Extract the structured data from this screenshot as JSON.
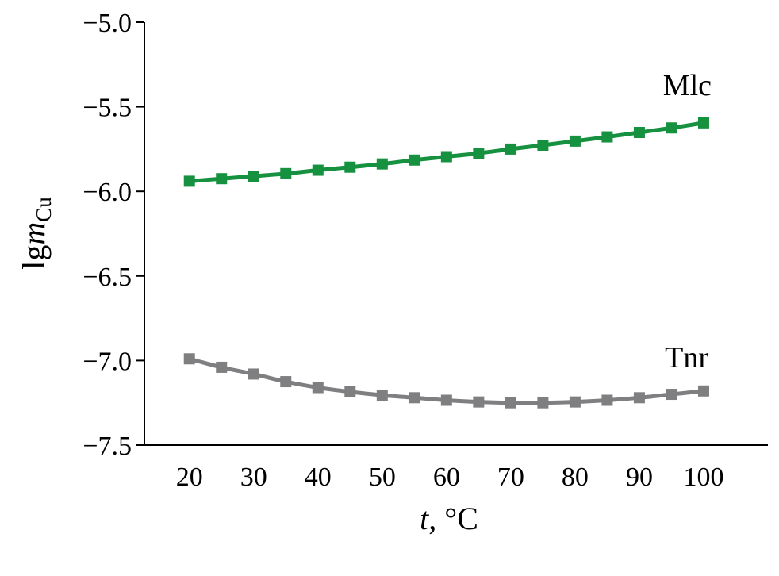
{
  "chart_data": {
    "type": "line",
    "title": "",
    "xlabel_italic": "t",
    "xlabel_rest": ", °C",
    "ylabel_main": "lg",
    "ylabel_italic": "m",
    "ylabel_sub": "Cu",
    "xlim": [
      13,
      110
    ],
    "ylim": [
      -7.5,
      -5.0
    ],
    "xticks": [
      20,
      30,
      40,
      50,
      60,
      70,
      80,
      90,
      100
    ],
    "xtick_labels": [
      "20",
      "30",
      "40",
      "50",
      "60",
      "70",
      "80",
      "90",
      "100"
    ],
    "yticks": [
      -5.0,
      -5.5,
      -6.0,
      -6.5,
      -7.0,
      -7.5
    ],
    "ytick_labels": [
      "−5.0",
      "−5.5",
      "−6.0",
      "−6.5",
      "−7.0",
      "−7.5"
    ],
    "x": [
      20,
      25,
      30,
      35,
      40,
      45,
      50,
      55,
      60,
      65,
      70,
      75,
      80,
      85,
      90,
      95,
      100
    ],
    "grid": false,
    "series": [
      {
        "name": "Mlc",
        "color": "#16913f",
        "values": [
          -5.94,
          -5.925,
          -5.91,
          -5.895,
          -5.875,
          -5.857,
          -5.838,
          -5.815,
          -5.795,
          -5.775,
          -5.75,
          -5.727,
          -5.703,
          -5.678,
          -5.652,
          -5.625,
          -5.595
        ]
      },
      {
        "name": "Tnr",
        "color": "#7f7f81",
        "values": [
          -6.99,
          -7.04,
          -7.08,
          -7.125,
          -7.16,
          -7.185,
          -7.205,
          -7.22,
          -7.235,
          -7.245,
          -7.25,
          -7.25,
          -7.245,
          -7.235,
          -7.22,
          -7.2,
          -7.18
        ]
      }
    ]
  }
}
